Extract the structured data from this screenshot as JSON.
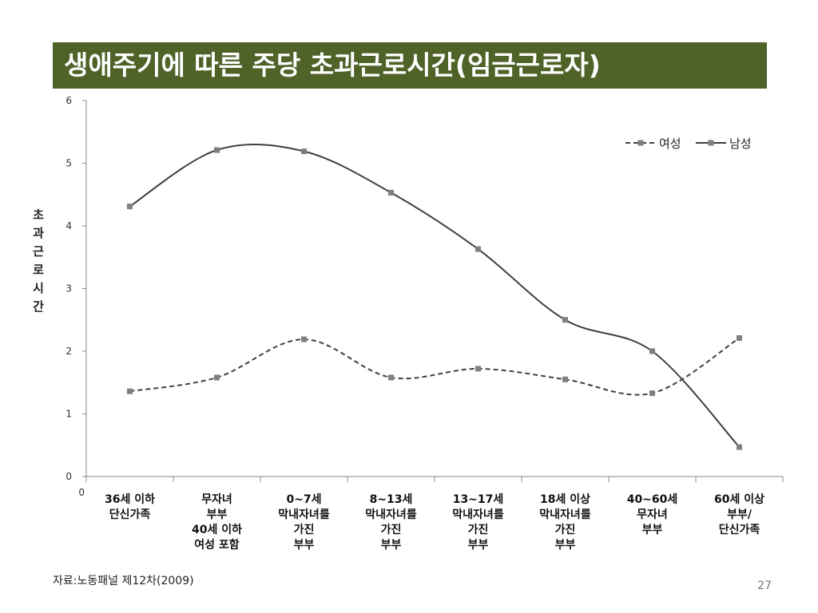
{
  "slide": {
    "title": "생애주기에 따른 주당 초과근로시간(임금근로자)",
    "source": "자료:노동패널 제12차(2009)",
    "page_number": "27"
  },
  "colors": {
    "title_bg": "#4f6228",
    "series": "#404040",
    "axis": "#888888"
  },
  "chart_data": {
    "type": "line",
    "title": "",
    "xlabel": "",
    "ylabel": "초과근로시간",
    "ylim": [
      0,
      6
    ],
    "yticks": [
      "0",
      "1",
      "2",
      "3",
      "4",
      "5",
      "6"
    ],
    "y_origin_label": "0",
    "legend_position": "top-right",
    "categories": [
      [
        "36세 이하",
        "단신가족"
      ],
      [
        "무자녀",
        "부부",
        "40세 이하",
        "여성 포함"
      ],
      [
        "0~7세",
        "막내자녀를",
        "가진",
        "부부"
      ],
      [
        "8~13세",
        "막내자녀를",
        "가진",
        "부부"
      ],
      [
        "13~17세",
        "막내자녀를",
        "가진",
        "부부"
      ],
      [
        "18세  이상",
        "막내자녀를",
        "가진",
        "부부"
      ],
      [
        "40~60세",
        "무자녀",
        "부부"
      ],
      [
        "60세 이상",
        "부부/",
        "단신가족"
      ]
    ],
    "series": [
      {
        "name": "여성",
        "style": "dashed",
        "values": [
          1.36,
          1.58,
          2.19,
          1.58,
          1.72,
          1.55,
          1.33,
          2.21
        ]
      },
      {
        "name": "남성",
        "style": "solid",
        "values": [
          4.31,
          5.21,
          5.19,
          4.53,
          3.63,
          2.5,
          2.0,
          0.47
        ]
      }
    ]
  }
}
